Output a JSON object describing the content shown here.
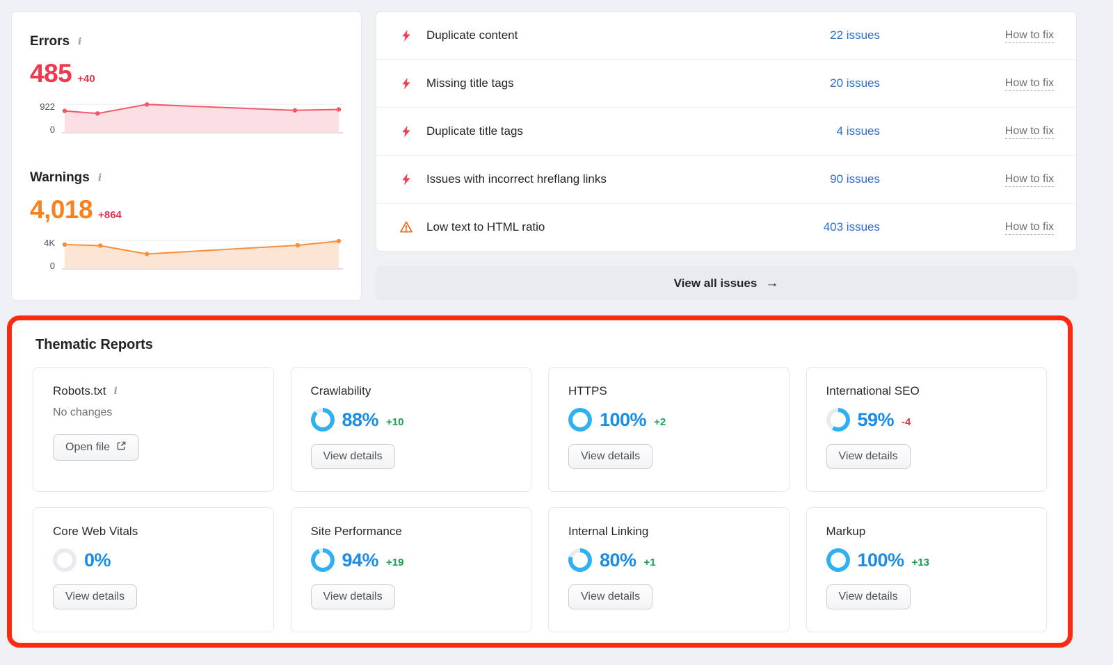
{
  "colors": {
    "error_red": "#f0384e",
    "warning_orange": "#f8821f",
    "delta_red": "#e0394e",
    "delta_green": "#1f9d50",
    "link_blue": "#2a6fd4",
    "percent_blue": "#1b8de4",
    "donut_blue": "#2fb0f2",
    "donut_track": "#e8ebef",
    "annotation_red": "#ff2b10"
  },
  "icons": {
    "arrow_right": "→",
    "info": "i"
  },
  "summary": {
    "errors": {
      "title": "Errors",
      "value": "485",
      "delta": "+40",
      "axis_max": "922",
      "axis_min": "0"
    },
    "warnings": {
      "title": "Warnings",
      "value": "4,018",
      "delta": "+864",
      "axis_max": "4K",
      "axis_min": "0"
    }
  },
  "issues": {
    "rows": [
      {
        "severity": "error",
        "label": "Duplicate content",
        "count": "22 issues",
        "fix": "How to fix"
      },
      {
        "severity": "error",
        "label": "Missing title tags",
        "count": "20 issues",
        "fix": "How to fix"
      },
      {
        "severity": "error",
        "label": "Duplicate title tags",
        "count": "4 issues",
        "fix": "How to fix"
      },
      {
        "severity": "error",
        "label": "Issues with incorrect hreflang links",
        "count": "90 issues",
        "fix": "How to fix"
      },
      {
        "severity": "warning",
        "label": "Low text to HTML ratio",
        "count": "403 issues",
        "fix": "How to fix"
      }
    ],
    "view_all_label": "View all issues"
  },
  "thematic": {
    "title": "Thematic Reports",
    "cards": [
      {
        "title": "Robots.txt",
        "status": "No changes",
        "button": "Open file"
      },
      {
        "title": "Crawlability",
        "percent": "88%",
        "value": 88,
        "delta": "+10",
        "delta_color": "#1f9d50",
        "button": "View details"
      },
      {
        "title": "HTTPS",
        "percent": "100%",
        "value": 100,
        "delta": "+2",
        "delta_color": "#1f9d50",
        "button": "View details"
      },
      {
        "title": "International SEO",
        "percent": "59%",
        "value": 59,
        "delta": "-4",
        "delta_color": "#e0394e",
        "button": "View details"
      },
      {
        "title": "Core Web Vitals",
        "percent": "0%",
        "value": 0,
        "delta": "",
        "delta_color": "",
        "button": "View details"
      },
      {
        "title": "Site Performance",
        "percent": "94%",
        "value": 94,
        "delta": "+19",
        "delta_color": "#1f9d50",
        "button": "View details"
      },
      {
        "title": "Internal Linking",
        "percent": "80%",
        "value": 80,
        "delta": "+1",
        "delta_color": "#1f9d50",
        "button": "View details"
      },
      {
        "title": "Markup",
        "percent": "100%",
        "value": 100,
        "delta": "+13",
        "delta_color": "#1f9d50",
        "button": "View details"
      }
    ]
  },
  "chart_data": [
    {
      "type": "line",
      "name": "Errors trend",
      "x": [
        0,
        0.12,
        0.3,
        0.84,
        1
      ],
      "values": [
        700,
        615,
        915,
        720,
        750
      ],
      "ylim": [
        0,
        922
      ],
      "color": "#f4576a",
      "fill": "#fbdfe3"
    },
    {
      "type": "line",
      "name": "Warnings trend",
      "x": [
        0,
        0.13,
        0.3,
        0.85,
        1
      ],
      "values": [
        3400,
        3250,
        2050,
        3300,
        3900
      ],
      "ylim": [
        0,
        4000
      ],
      "color": "#f78f3d",
      "fill": "#fce5d3"
    }
  ]
}
